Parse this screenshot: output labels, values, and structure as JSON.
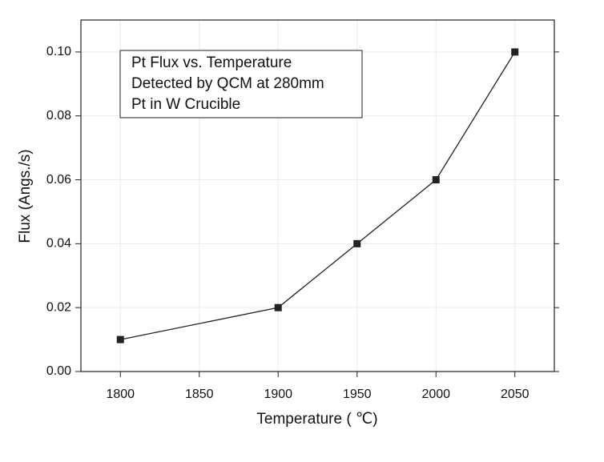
{
  "chart_data": {
    "type": "line",
    "annotation": [
      "Pt Flux vs. Temperature",
      "Detected by QCM at 280mm",
      "Pt in W Crucible"
    ],
    "x_label": "Temperature ( ℃)",
    "y_label": "Flux (Angs./s)",
    "x": [
      1800,
      1900,
      1950,
      2000,
      2050
    ],
    "series": [
      {
        "color": "#222222",
        "values": [
          0.01,
          0.02,
          0.04,
          0.06,
          0.1
        ]
      }
    ],
    "xlim": [
      1775,
      2075
    ],
    "ylim": [
      0,
      0.11
    ],
    "xticks": [
      1800,
      1850,
      1900,
      1950,
      2000,
      2050
    ],
    "yticks": [
      {
        "value": 0,
        "label": "0.00"
      },
      {
        "value": 0.02,
        "label": "0.02"
      },
      {
        "value": 0.04,
        "label": "0.04"
      },
      {
        "value": 0.06,
        "label": "0.06"
      },
      {
        "value": 0.08,
        "label": "0.08"
      },
      {
        "value": 0.1,
        "label": "0.10"
      }
    ],
    "grid": true
  }
}
